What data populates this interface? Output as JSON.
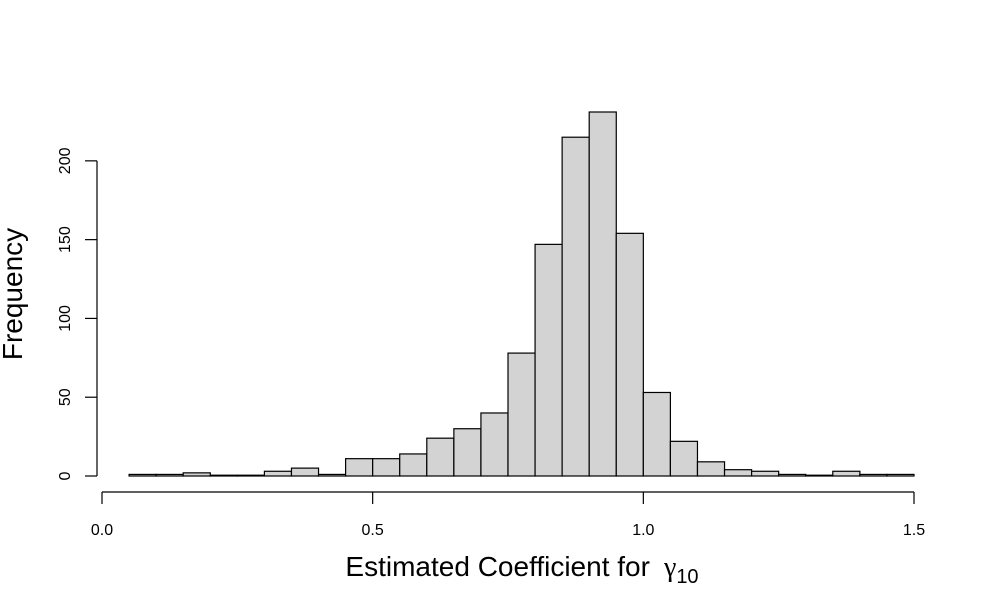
{
  "chart_data": {
    "type": "bar",
    "subtype": "histogram",
    "xlabel": "Estimated Coefficient for",
    "xlabel_symbol": "γ",
    "xlabel_subscript": "10",
    "ylabel": "Frequency",
    "xlim": [
      0.0,
      1.5
    ],
    "ylim": [
      0,
      231
    ],
    "x_ticks": [
      "0.0",
      "0.5",
      "1.0",
      "1.5"
    ],
    "y_ticks": [
      "0",
      "50",
      "100",
      "150",
      "200"
    ],
    "bin_width": 0.05,
    "bins": [
      {
        "start": 0.05,
        "end": 0.1,
        "count": 1
      },
      {
        "start": 0.1,
        "end": 0.15,
        "count": 1
      },
      {
        "start": 0.15,
        "end": 0.2,
        "count": 2
      },
      {
        "start": 0.2,
        "end": 0.25,
        "count": 0
      },
      {
        "start": 0.25,
        "end": 0.3,
        "count": 0
      },
      {
        "start": 0.3,
        "end": 0.35,
        "count": 3
      },
      {
        "start": 0.35,
        "end": 0.4,
        "count": 5
      },
      {
        "start": 0.4,
        "end": 0.45,
        "count": 1
      },
      {
        "start": 0.45,
        "end": 0.5,
        "count": 11
      },
      {
        "start": 0.5,
        "end": 0.55,
        "count": 11
      },
      {
        "start": 0.55,
        "end": 0.6,
        "count": 14
      },
      {
        "start": 0.6,
        "end": 0.65,
        "count": 24
      },
      {
        "start": 0.65,
        "end": 0.7,
        "count": 30
      },
      {
        "start": 0.7,
        "end": 0.75,
        "count": 40
      },
      {
        "start": 0.75,
        "end": 0.8,
        "count": 78
      },
      {
        "start": 0.8,
        "end": 0.85,
        "count": 147
      },
      {
        "start": 0.85,
        "end": 0.9,
        "count": 215
      },
      {
        "start": 0.9,
        "end": 0.95,
        "count": 231
      },
      {
        "start": 0.95,
        "end": 1.0,
        "count": 154
      },
      {
        "start": 1.0,
        "end": 1.05,
        "count": 53
      },
      {
        "start": 1.05,
        "end": 1.1,
        "count": 22
      },
      {
        "start": 1.1,
        "end": 1.15,
        "count": 9
      },
      {
        "start": 1.15,
        "end": 1.2,
        "count": 4
      },
      {
        "start": 1.2,
        "end": 1.25,
        "count": 3
      },
      {
        "start": 1.25,
        "end": 1.3,
        "count": 1
      },
      {
        "start": 1.3,
        "end": 1.35,
        "count": 0
      },
      {
        "start": 1.35,
        "end": 1.4,
        "count": 3
      },
      {
        "start": 1.4,
        "end": 1.45,
        "count": 1
      },
      {
        "start": 1.45,
        "end": 1.5,
        "count": 1
      }
    ],
    "bar_fill": "#d3d3d3",
    "bar_stroke": "#000000",
    "grid": false,
    "legend": "none"
  }
}
